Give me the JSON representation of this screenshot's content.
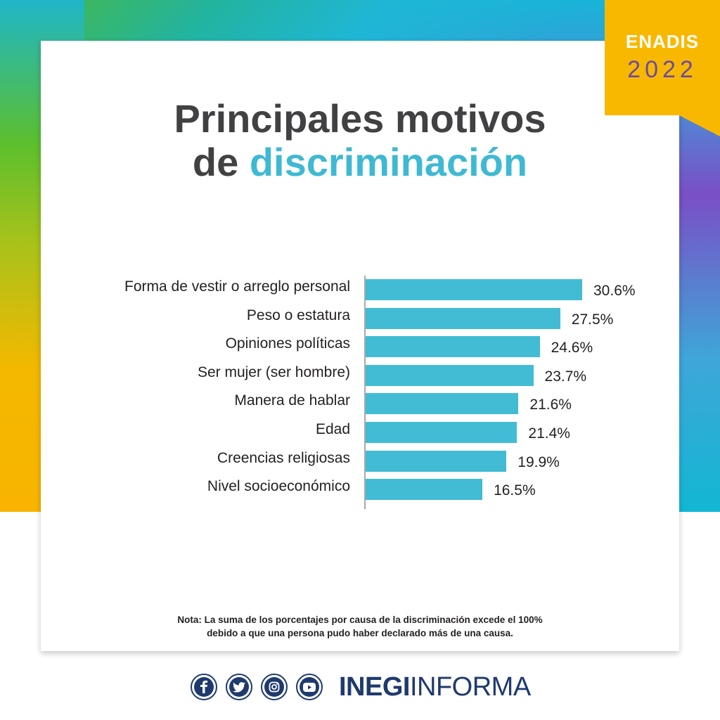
{
  "badge": {
    "title": "ENADIS",
    "year": "2022",
    "color": "#f9b800"
  },
  "title": {
    "line1": "Principales motivos",
    "line2_prefix": "de ",
    "line2_accent": "discriminación",
    "accent_color": "#3fb9d3"
  },
  "chart_data": {
    "type": "bar",
    "orientation": "horizontal",
    "categories": [
      "Forma de vestir o arreglo personal",
      "Peso o estatura",
      "Opiniones políticas",
      "Ser mujer (ser hombre)",
      "Manera de hablar",
      "Edad",
      "Creencias religiosas",
      "Nivel socioeconómico"
    ],
    "values": [
      30.6,
      27.5,
      24.6,
      23.7,
      21.6,
      21.4,
      19.9,
      16.5
    ],
    "value_labels": [
      "30.6%",
      "27.5%",
      "24.6%",
      "23.7%",
      "21.6%",
      "21.4%",
      "19.9%",
      "16.5%"
    ],
    "unit": "%",
    "bar_color": "#41bcd4",
    "grid": false,
    "legend": "none"
  },
  "note": {
    "line1": "Nota: La suma de los porcentajes por causa de la discriminación excede el 100%",
    "line2": "debido a que una persona pudo haber declarado más de una causa."
  },
  "footer": {
    "social_icons": [
      "facebook-icon",
      "twitter-icon",
      "instagram-icon",
      "youtube-icon"
    ],
    "brand_bold": "INEGI",
    "brand_light": "INFORMA",
    "brand_color": "#1f3a6e"
  }
}
